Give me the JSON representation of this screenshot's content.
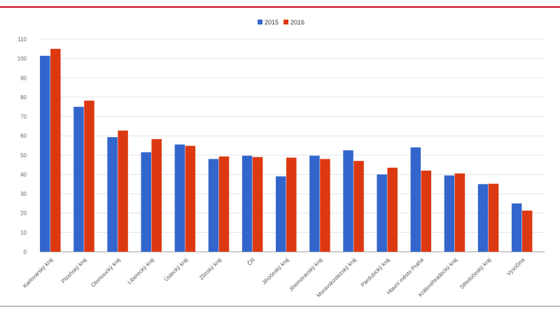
{
  "chart_data": {
    "type": "bar",
    "title": "",
    "xlabel": "",
    "ylabel": "",
    "ylim": [
      0,
      110
    ],
    "yticks": [
      0,
      10,
      20,
      30,
      40,
      50,
      60,
      70,
      80,
      90,
      100,
      110
    ],
    "grid": true,
    "legend_position": "top",
    "categories": [
      "Karlovarský kraj",
      "Plzeňský kraj",
      "Olomoucký kraj",
      "Liberecký kraj",
      "Ústecký kraj",
      "Zlínský kraj",
      "ČR",
      "Jihočeský kraj",
      "Jihomoravský kraj",
      "Moravskoslezský kraj",
      "Pardubický kraj",
      "Hlavní město Praha",
      "Královéhradecký kraj",
      "Středočeský kraj",
      "Vysočina"
    ],
    "series": [
      {
        "name": "2015",
        "color": "#3366cc",
        "values": [
          101.4,
          75.0,
          59.3,
          51.5,
          55.5,
          48.0,
          49.7,
          39.0,
          49.7,
          52.5,
          40.0,
          54.0,
          39.5,
          35.0,
          25.0
        ]
      },
      {
        "name": "2016",
        "color": "#dc3912",
        "values": [
          105.0,
          78.2,
          62.7,
          58.3,
          54.8,
          49.3,
          49.0,
          48.7,
          48.0,
          47.0,
          43.5,
          42.0,
          40.5,
          35.2,
          21.3
        ]
      }
    ]
  }
}
